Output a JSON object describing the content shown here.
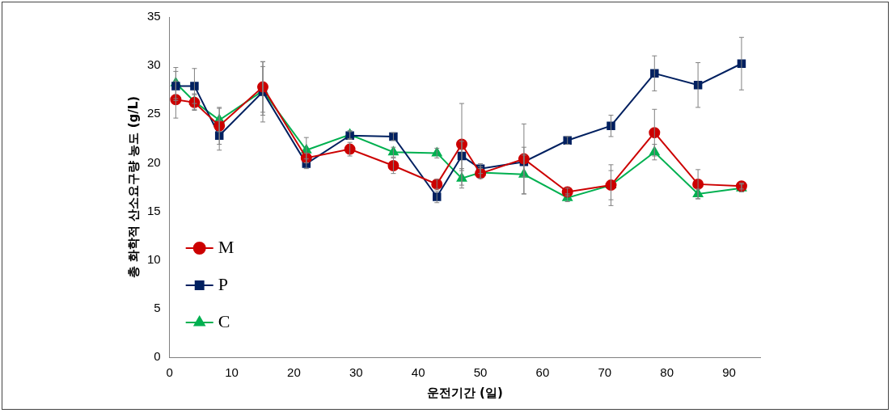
{
  "chart_data": {
    "type": "line",
    "x_label": "운전기간 (일)",
    "y_label": "총 화학적 산소요구량 농도 (g/L)",
    "x": [
      1,
      4,
      8,
      15,
      22,
      29,
      36,
      43,
      47,
      50,
      57,
      64,
      71,
      78,
      85,
      92
    ],
    "series": [
      {
        "name": "M",
        "color": "#cc0000",
        "marker": "circle",
        "values": [
          26.5,
          26.2,
          23.8,
          27.8,
          20.5,
          21.4,
          19.7,
          17.8,
          21.9,
          18.9,
          20.4,
          17.0,
          17.7,
          23.1,
          17.8,
          17.6
        ],
        "errors": [
          1.9,
          0.8,
          1.9,
          2.6,
          0.5,
          0.7,
          0.8,
          0.5,
          4.2,
          0.5,
          3.6,
          0.4,
          2.1,
          2.4,
          1.5,
          0.3
        ]
      },
      {
        "name": "P",
        "color": "#002060",
        "marker": "square",
        "values": [
          27.9,
          27.9,
          22.8,
          27.3,
          19.9,
          22.8,
          22.7,
          16.5,
          20.7,
          19.4,
          20.1,
          22.3,
          23.8,
          29.2,
          28.0,
          30.2
        ],
        "errors": [
          1.5,
          1.8,
          1.5,
          3.1,
          0.5,
          0.4,
          0.4,
          0.6,
          1.5,
          0.5,
          1.5,
          0.4,
          1.1,
          1.8,
          2.3,
          2.7
        ]
      },
      {
        "name": "C",
        "color": "#00b050",
        "marker": "triangle",
        "values": [
          28.2,
          26.3,
          24.4,
          27.4,
          21.3,
          22.9,
          21.1,
          21.0,
          18.4,
          19.0,
          18.8,
          16.4,
          17.7,
          21.1,
          16.8,
          17.4
        ],
        "errors": [
          1.6,
          0.8,
          1.2,
          2.5,
          1.3,
          0.4,
          0.5,
          0.5,
          1.0,
          0.6,
          2.0,
          0.4,
          1.5,
          0.8,
          0.5,
          0.4
        ]
      }
    ],
    "xlim": [
      0,
      95
    ],
    "xticks": [
      0,
      10,
      20,
      30,
      40,
      50,
      60,
      70,
      80,
      90
    ],
    "ylim": [
      0,
      35
    ],
    "yticks": [
      0,
      5,
      10,
      15,
      20,
      25,
      30,
      35
    ],
    "grid": false,
    "legend": "bottom-left"
  }
}
